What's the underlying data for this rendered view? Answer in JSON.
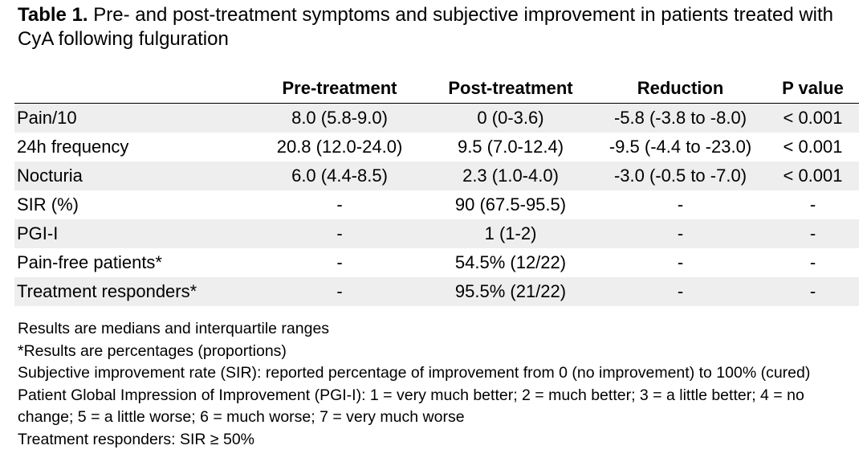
{
  "caption": {
    "label": "Table 1.",
    "text": " Pre- and post-treatment symptoms and subjective improvement in patients treated with CyA following fulguration"
  },
  "table": {
    "headers": [
      "",
      "Pre-treatment",
      "Post-treatment",
      "Reduction",
      "P value"
    ],
    "rows": [
      [
        "Pain/10",
        "8.0 (5.8-9.0)",
        "0 (0-3.6)",
        "-5.8 (-3.8 to -8.0)",
        "< 0.001"
      ],
      [
        "24h frequency",
        "20.8 (12.0-24.0)",
        "9.5 (7.0-12.4)",
        "-9.5 (-4.4 to -23.0)",
        "< 0.001"
      ],
      [
        "Nocturia",
        "6.0 (4.4-8.5)",
        "2.3 (1.0-4.0)",
        "-3.0 (-0.5 to -7.0)",
        "< 0.001"
      ],
      [
        "SIR (%)",
        "-",
        "90 (67.5-95.5)",
        "-",
        "-"
      ],
      [
        "PGI-I",
        "-",
        "1 (1-2)",
        "-",
        "-"
      ],
      [
        "Pain-free patients*",
        "-",
        "54.5% (12/22)",
        "-",
        "-"
      ],
      [
        "Treatment responders*",
        "-",
        "95.5% (21/22)",
        "-",
        "-"
      ]
    ]
  },
  "notes": [
    "Results are medians and interquartile ranges",
    "*Results are percentages (proportions)",
    "Subjective improvement rate (SIR): reported percentage of improvement from 0 (no improvement) to 100% (cured)",
    "Patient Global Impression of Improvement (PGI-I): 1 = very much better; 2 = much better; 3 = a little better; 4 = no change; 5 = a little worse; 6 = much worse; 7 = very much worse",
    "Treatment responders: SIR ≥ 50%"
  ]
}
